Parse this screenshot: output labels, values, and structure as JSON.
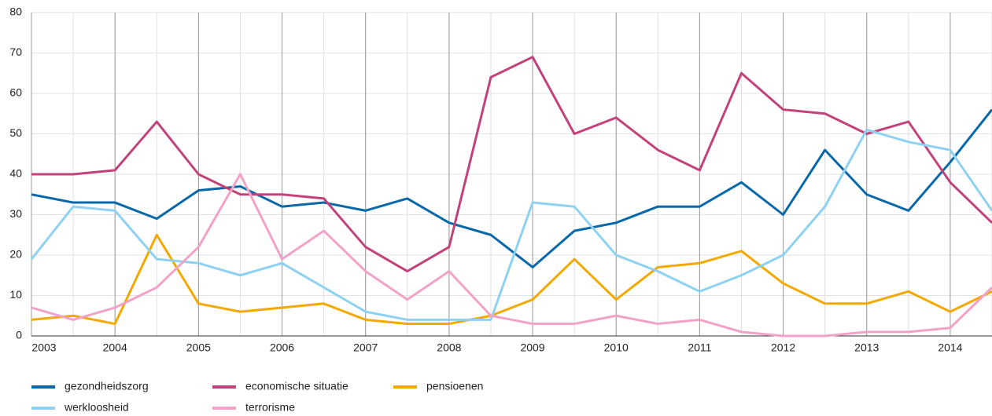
{
  "chart_data": {
    "type": "line",
    "x": [
      2003,
      2003.5,
      2004,
      2004.5,
      2005,
      2005.5,
      2006,
      2006.5,
      2007,
      2007.5,
      2008,
      2008.5,
      2009,
      2009.5,
      2010,
      2010.5,
      2011,
      2011.5,
      2012,
      2012.5,
      2013,
      2013.5,
      2014,
      2014.5
    ],
    "series": [
      {
        "name": "gezondheidszorg",
        "color": "#0868a8",
        "values": [
          35,
          33,
          33,
          29,
          36,
          37,
          32,
          33,
          31,
          34,
          28,
          25,
          17,
          26,
          28,
          32,
          32,
          38,
          30,
          46,
          35,
          31,
          43,
          56
        ]
      },
      {
        "name": "economische situatie",
        "color": "#c2427b",
        "values": [
          40,
          40,
          41,
          53,
          40,
          35,
          35,
          34,
          22,
          16,
          22,
          64,
          69,
          50,
          54,
          46,
          41,
          65,
          56,
          55,
          50,
          53,
          38,
          28
        ]
      },
      {
        "name": "pensioenen",
        "color": "#f2a900",
        "values": [
          4,
          5,
          3,
          25,
          8,
          6,
          7,
          8,
          4,
          3,
          3,
          5,
          9,
          19,
          9,
          17,
          18,
          21,
          13,
          8,
          8,
          11,
          6,
          11
        ]
      },
      {
        "name": "werkloosheid",
        "color": "#8fd1f2",
        "values": [
          19,
          32,
          31,
          19,
          18,
          15,
          18,
          12,
          6,
          4,
          4,
          4,
          33,
          32,
          20,
          16,
          11,
          15,
          20,
          32,
          51,
          48,
          46,
          31
        ]
      },
      {
        "name": "terrorisme",
        "color": "#f2a2c6",
        "values": [
          7,
          4,
          7,
          12,
          22,
          40,
          19,
          26,
          16,
          9,
          16,
          5,
          3,
          3,
          5,
          3,
          4,
          1,
          0,
          0,
          1,
          1,
          2,
          12
        ]
      }
    ],
    "xlim": [
      2003,
      2014.5
    ],
    "xticks": [
      2003,
      2004,
      2005,
      2006,
      2007,
      2008,
      2009,
      2010,
      2011,
      2012,
      2013,
      2014
    ],
    "ylim": [
      0,
      80
    ],
    "yticks": [
      0,
      10,
      20,
      30,
      40,
      50,
      60,
      70,
      80
    ],
    "grid": true,
    "legend": "bottom"
  }
}
